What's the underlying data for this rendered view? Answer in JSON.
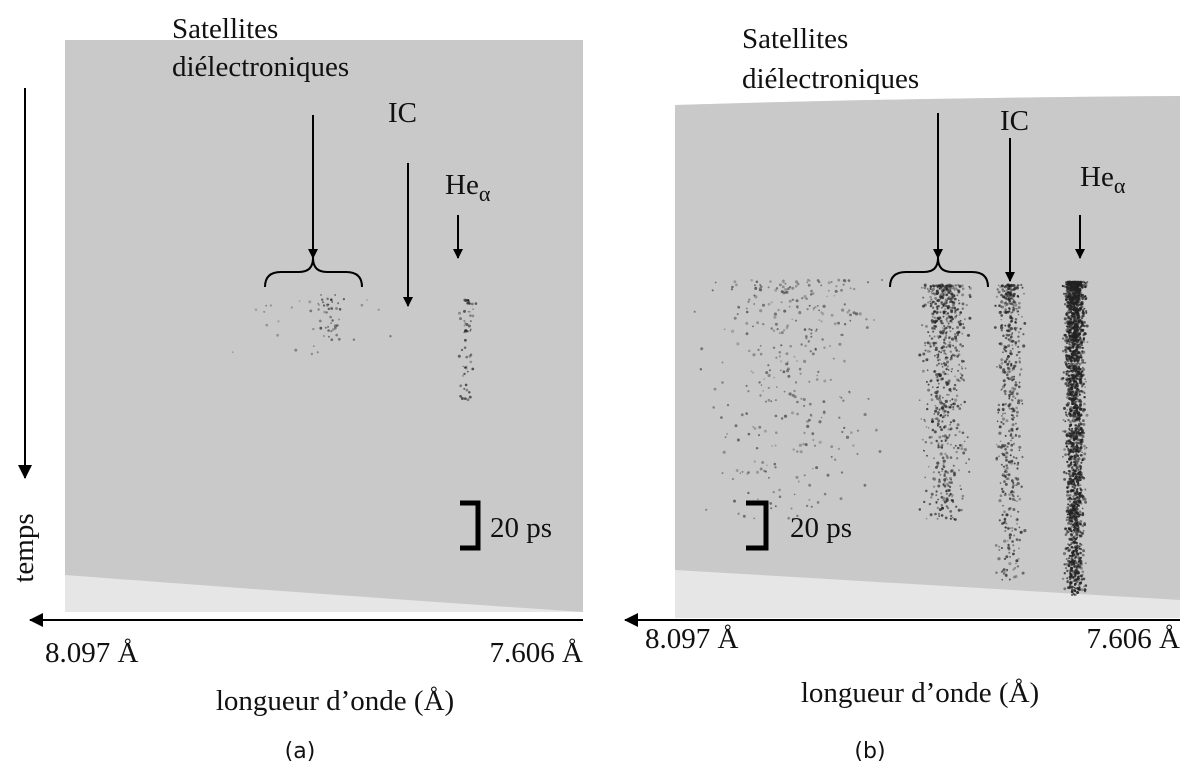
{
  "time_axis_label": "temps",
  "panels": [
    {
      "satellites_line1": "Satellites",
      "satellites_line2": "diélectroniques",
      "ic_label": "IC",
      "he_label": "He",
      "he_subscript": "α",
      "scale_label": "20 ps",
      "x_left": "8.097 Å",
      "x_right": "7.606 Å",
      "x_axis_label": "longueur d’onde (Å)",
      "caption": "(a)"
    },
    {
      "satellites_line1": "Satellites",
      "satellites_line2": "diélectroniques",
      "ic_label": "IC",
      "he_label": "He",
      "he_subscript": "α",
      "scale_label": "20 ps",
      "x_left": "8.097 Å",
      "x_right": "7.606 Å",
      "x_axis_label": "longueur d’onde (Å)",
      "caption": "(b)"
    }
  ]
}
